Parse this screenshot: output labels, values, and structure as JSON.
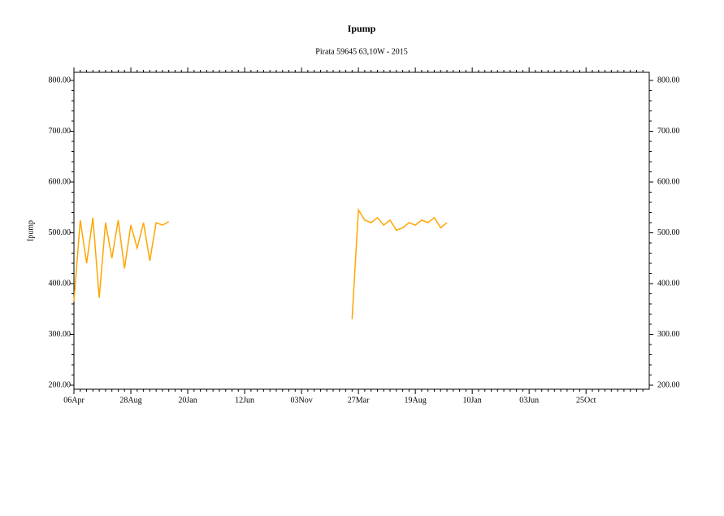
{
  "chart_data": {
    "type": "line",
    "title": "Ipump",
    "subtitle": "Pirata 59645 63,10W - 2015",
    "y_label": "Ipump",
    "categories": [
      "06Apr",
      null,
      null,
      null,
      null,
      null,
      null,
      null,
      null,
      "28Aug",
      null,
      null,
      null,
      null,
      null,
      null,
      null,
      null,
      "20Jan",
      null,
      null,
      null,
      null,
      null,
      null,
      null,
      null,
      "12Jun",
      null,
      null,
      null,
      null,
      null,
      null,
      null,
      null,
      "03Nov",
      null,
      null,
      null,
      null,
      null,
      null,
      null,
      null,
      "27Mar",
      null,
      null,
      null,
      null,
      null,
      null,
      null,
      null,
      "19Aug",
      null,
      null,
      null,
      null,
      null,
      null,
      null,
      null,
      "10Jan",
      null,
      null,
      null,
      null,
      null,
      null,
      null,
      null,
      "03Jun",
      null,
      null,
      null,
      null,
      null,
      null,
      null,
      null,
      "25Oct",
      null,
      null,
      null,
      null,
      null,
      null,
      null,
      null,
      null
    ],
    "series": [
      {
        "name": "Ipump",
        "color": "#ffa500",
        "values": [
          365,
          525,
          440,
          530,
          372,
          520,
          450,
          525,
          430,
          515,
          470,
          520,
          445,
          520,
          515,
          522,
          null,
          null,
          null,
          null,
          null,
          null,
          null,
          null,
          null,
          null,
          null,
          null,
          null,
          null,
          null,
          null,
          null,
          null,
          null,
          null,
          null,
          null,
          null,
          null,
          null,
          null,
          null,
          null,
          330,
          545,
          525,
          520,
          530,
          515,
          525,
          505,
          510,
          520,
          515,
          525,
          520,
          530,
          510,
          520,
          null,
          null,
          null,
          null,
          null,
          null,
          null,
          null,
          null,
          null,
          null,
          null,
          null,
          null,
          null,
          null,
          null,
          null,
          null,
          null,
          null,
          null,
          null,
          null,
          null,
          null,
          null,
          null,
          null,
          null,
          null
        ]
      }
    ],
    "ylim": [
      192,
      816
    ],
    "yticks": [
      {
        "value": 200,
        "label": "200.00"
      },
      {
        "value": 300,
        "label": "300.00"
      },
      {
        "value": 400,
        "label": "400.00"
      },
      {
        "value": 500,
        "label": "500.00"
      },
      {
        "value": 600,
        "label": "600.00"
      },
      {
        "value": 700,
        "label": "700.00"
      },
      {
        "value": 800,
        "label": "800.00"
      }
    ]
  }
}
